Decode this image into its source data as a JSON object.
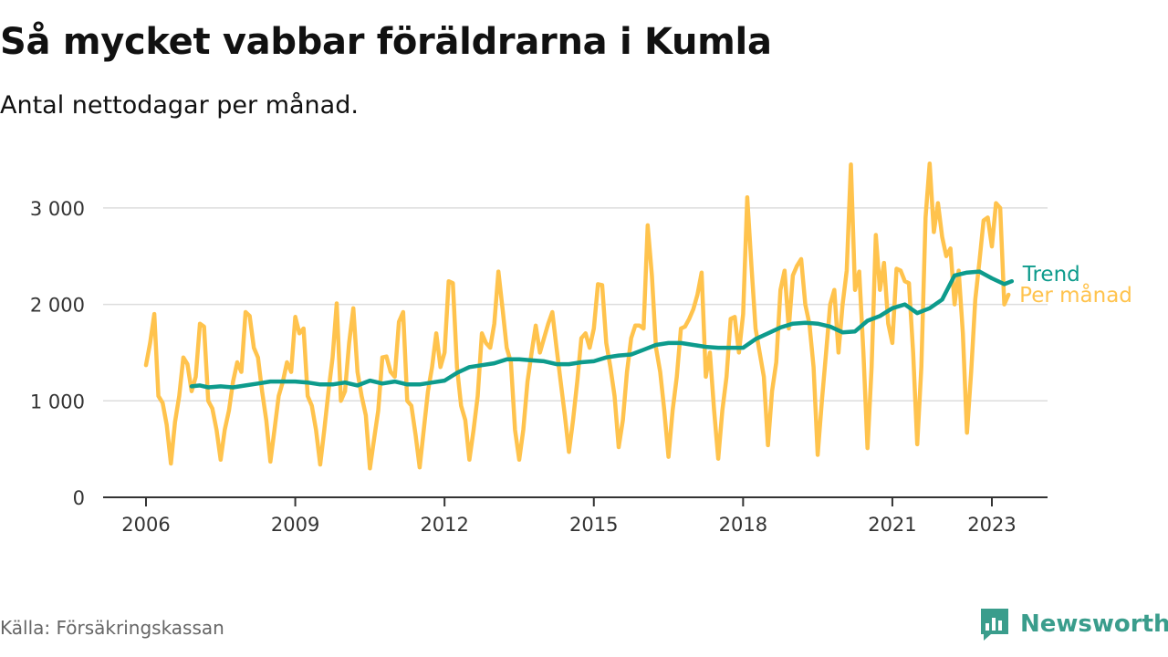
{
  "title": "Så mycket vabbar föräldrarna i Kumla",
  "subtitle": "Antal nettodagar per månad.",
  "source": "Källa: Försäkringskassan",
  "brand": {
    "name": "Newsworthy",
    "icon": "newsworthy-chart-logo-icon",
    "color": "#3a9d8c"
  },
  "colors": {
    "monthly": "#ffc34d",
    "trend": "#0d9b8c",
    "grid": "#dddddd",
    "axis": "#333333"
  },
  "chart_data": {
    "type": "line",
    "title": "Så mycket vabbar föräldrarna i Kumla",
    "subtitle": "Antal nettodagar per månad.",
    "xlabel": "",
    "ylabel": "",
    "xlim": [
      2005.8,
      2024.0
    ],
    "ylim": [
      0,
      3500
    ],
    "x_ticks": [
      2006,
      2009,
      2012,
      2015,
      2018,
      2021,
      2023
    ],
    "y_ticks": [
      0,
      1000,
      2000,
      3000
    ],
    "y_tick_labels": [
      "0",
      "1 000",
      "2 000",
      "3 000"
    ],
    "grid": "horizontal",
    "legend": "inline labels at line ends (right)",
    "series": [
      {
        "name": "Per månad",
        "color": "#ffc34d",
        "x": [
          2006.0,
          2006.083,
          2006.167,
          2006.25,
          2006.333,
          2006.417,
          2006.5,
          2006.583,
          2006.667,
          2006.75,
          2006.833,
          2006.917,
          2007.0,
          2007.083,
          2007.167,
          2007.25,
          2007.333,
          2007.417,
          2007.5,
          2007.583,
          2007.667,
          2007.75,
          2007.833,
          2007.917,
          2008.0,
          2008.083,
          2008.167,
          2008.25,
          2008.333,
          2008.417,
          2008.5,
          2008.583,
          2008.667,
          2008.75,
          2008.833,
          2008.917,
          2009.0,
          2009.083,
          2009.167,
          2009.25,
          2009.333,
          2009.417,
          2009.5,
          2009.583,
          2009.667,
          2009.75,
          2009.833,
          2009.917,
          2010.0,
          2010.083,
          2010.167,
          2010.25,
          2010.333,
          2010.417,
          2010.5,
          2010.583,
          2010.667,
          2010.75,
          2010.833,
          2010.917,
          2011.0,
          2011.083,
          2011.167,
          2011.25,
          2011.333,
          2011.417,
          2011.5,
          2011.583,
          2011.667,
          2011.75,
          2011.833,
          2011.917,
          2012.0,
          2012.083,
          2012.167,
          2012.25,
          2012.333,
          2012.417,
          2012.5,
          2012.583,
          2012.667,
          2012.75,
          2012.833,
          2012.917,
          2013.0,
          2013.083,
          2013.167,
          2013.25,
          2013.333,
          2013.417,
          2013.5,
          2013.583,
          2013.667,
          2013.75,
          2013.833,
          2013.917,
          2014.0,
          2014.083,
          2014.167,
          2014.25,
          2014.333,
          2014.417,
          2014.5,
          2014.583,
          2014.667,
          2014.75,
          2014.833,
          2014.917,
          2015.0,
          2015.083,
          2015.167,
          2015.25,
          2015.333,
          2015.417,
          2015.5,
          2015.583,
          2015.667,
          2015.75,
          2015.833,
          2015.917,
          2016.0,
          2016.083,
          2016.167,
          2016.25,
          2016.333,
          2016.417,
          2016.5,
          2016.583,
          2016.667,
          2016.75,
          2016.833,
          2016.917,
          2017.0,
          2017.083,
          2017.167,
          2017.25,
          2017.333,
          2017.417,
          2017.5,
          2017.583,
          2017.667,
          2017.75,
          2017.833,
          2017.917,
          2018.0,
          2018.083,
          2018.167,
          2018.25,
          2018.333,
          2018.417,
          2018.5,
          2018.583,
          2018.667,
          2018.75,
          2018.833,
          2018.917,
          2019.0,
          2019.083,
          2019.167,
          2019.25,
          2019.333,
          2019.417,
          2019.5,
          2019.583,
          2019.667,
          2019.75,
          2019.833,
          2019.917,
          2020.0,
          2020.083,
          2020.167,
          2020.25,
          2020.333,
          2020.417,
          2020.5,
          2020.583,
          2020.667,
          2020.75,
          2020.833,
          2020.917,
          2021.0,
          2021.083,
          2021.167,
          2021.25,
          2021.333,
          2021.417,
          2021.5,
          2021.583,
          2021.667,
          2021.75,
          2021.833,
          2021.917,
          2022.0,
          2022.083,
          2022.167,
          2022.25,
          2022.333,
          2022.417,
          2022.5,
          2022.583,
          2022.667,
          2022.75,
          2022.833,
          2022.917,
          2023.0,
          2023.083,
          2023.167,
          2023.25,
          2023.333
        ],
        "values": [
          1370,
          1600,
          1900,
          1050,
          980,
          750,
          350,
          780,
          1050,
          1450,
          1380,
          1100,
          1250,
          1800,
          1770,
          1000,
          920,
          700,
          390,
          700,
          900,
          1200,
          1400,
          1300,
          1920,
          1880,
          1550,
          1450,
          1100,
          800,
          370,
          700,
          1050,
          1200,
          1400,
          1300,
          1870,
          1700,
          1750,
          1050,
          950,
          700,
          340,
          700,
          1100,
          1450,
          2010,
          1000,
          1100,
          1600,
          1960,
          1300,
          1050,
          850,
          300,
          600,
          900,
          1450,
          1460,
          1300,
          1250,
          1820,
          1920,
          1000,
          950,
          650,
          310,
          700,
          1100,
          1350,
          1700,
          1350,
          1500,
          2240,
          2220,
          1350,
          950,
          800,
          390,
          700,
          1050,
          1700,
          1600,
          1550,
          1800,
          2340,
          1950,
          1550,
          1400,
          700,
          390,
          700,
          1200,
          1500,
          1780,
          1500,
          1650,
          1800,
          1920,
          1550,
          1200,
          850,
          470,
          800,
          1200,
          1650,
          1700,
          1550,
          1750,
          2210,
          2200,
          1600,
          1350,
          1050,
          520,
          800,
          1300,
          1650,
          1780,
          1780,
          1750,
          2820,
          2300,
          1550,
          1300,
          900,
          420,
          900,
          1250,
          1750,
          1770,
          1850,
          1950,
          2100,
          2330,
          1250,
          1500,
          900,
          400,
          900,
          1250,
          1850,
          1870,
          1500,
          1900,
          3110,
          2400,
          1750,
          1500,
          1250,
          540,
          1100,
          1400,
          2150,
          2350,
          1750,
          2300,
          2400,
          2470,
          2000,
          1800,
          1350,
          440,
          1000,
          1500,
          2000,
          2150,
          1500,
          2000,
          2350,
          3450,
          2150,
          2340,
          1500,
          510,
          1350,
          2720,
          2150,
          2430,
          1800,
          1600,
          2370,
          2350,
          2240,
          2220,
          1500,
          550,
          1350,
          2900,
          3460,
          2750,
          3050,
          2700,
          2500,
          2580,
          2000,
          2350,
          1700,
          670,
          1300,
          2050,
          2450,
          2870,
          2900,
          2600,
          3050,
          3000,
          2000,
          2100
        ]
      },
      {
        "name": "Trend",
        "color": "#0d9b8c",
        "x": [
          2006.917,
          2007.083,
          2007.25,
          2007.5,
          2007.75,
          2008.0,
          2008.25,
          2008.5,
          2008.75,
          2009.0,
          2009.25,
          2009.5,
          2009.75,
          2010.0,
          2010.25,
          2010.5,
          2010.75,
          2011.0,
          2011.25,
          2011.5,
          2011.75,
          2012.0,
          2012.25,
          2012.5,
          2012.75,
          2013.0,
          2013.25,
          2013.5,
          2013.75,
          2014.0,
          2014.25,
          2014.5,
          2014.75,
          2015.0,
          2015.25,
          2015.5,
          2015.75,
          2016.0,
          2016.25,
          2016.5,
          2016.75,
          2017.0,
          2017.25,
          2017.5,
          2017.75,
          2018.0,
          2018.25,
          2018.5,
          2018.75,
          2019.0,
          2019.25,
          2019.5,
          2019.75,
          2020.0,
          2020.25,
          2020.5,
          2020.75,
          2021.0,
          2021.25,
          2021.5,
          2021.75,
          2022.0,
          2022.25,
          2022.5,
          2022.75,
          2023.0,
          2023.25,
          2023.4
        ],
        "values": [
          1150,
          1160,
          1140,
          1150,
          1140,
          1160,
          1180,
          1200,
          1200,
          1200,
          1190,
          1170,
          1170,
          1190,
          1160,
          1210,
          1180,
          1200,
          1170,
          1170,
          1190,
          1210,
          1290,
          1350,
          1370,
          1390,
          1430,
          1430,
          1420,
          1410,
          1380,
          1380,
          1400,
          1410,
          1450,
          1470,
          1480,
          1530,
          1580,
          1600,
          1600,
          1580,
          1560,
          1550,
          1550,
          1550,
          1640,
          1700,
          1760,
          1800,
          1810,
          1800,
          1770,
          1710,
          1720,
          1830,
          1880,
          1960,
          2000,
          1910,
          1960,
          2050,
          2300,
          2330,
          2340,
          2270,
          2210,
          2240
        ]
      }
    ]
  }
}
